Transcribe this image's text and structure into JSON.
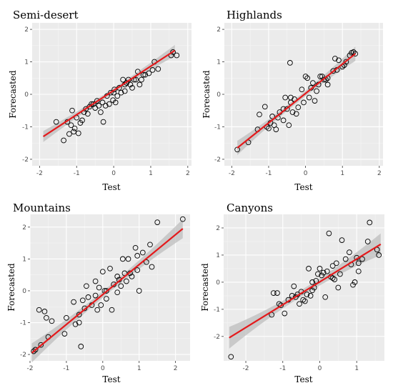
{
  "chart_data": [
    {
      "type": "scatter",
      "title": "Semi-desert",
      "xlabel": "Test",
      "ylabel": "Forecasted",
      "xlim": [
        -2.2,
        2.1
      ],
      "ylim": [
        -2.2,
        2.2
      ],
      "xticks": [
        -2,
        -1,
        0,
        1,
        2
      ],
      "yticks": [
        -2,
        -1,
        0,
        1,
        2
      ],
      "grid": true,
      "point_color": "#000000",
      "line_color": "#e41a1c",
      "band_color": "#bdbdbd",
      "background": "#ebebeb",
      "fit": {
        "x": [
          -1.9,
          1.65
        ],
        "y": [
          -1.3,
          1.35
        ]
      },
      "band_halfwidth": {
        "ends": 0.17,
        "center": 0.07
      },
      "points": [
        [
          -1.55,
          -0.85
        ],
        [
          -1.35,
          -1.42
        ],
        [
          -1.25,
          -0.85
        ],
        [
          -1.2,
          -1.22
        ],
        [
          -1.15,
          -0.95
        ],
        [
          -1.12,
          -0.5
        ],
        [
          -1.08,
          -1.15
        ],
        [
          -1.05,
          -1.05
        ],
        [
          -1.0,
          -0.72
        ],
        [
          -0.9,
          -0.88
        ],
        [
          -0.85,
          -0.8
        ],
        [
          -0.8,
          -0.55
        ],
        [
          -0.75,
          -0.45
        ],
        [
          -0.7,
          -0.6
        ],
        [
          -0.65,
          -0.38
        ],
        [
          -0.55,
          -0.3
        ],
        [
          -0.5,
          -0.42
        ],
        [
          -0.45,
          -0.2
        ],
        [
          -0.4,
          -0.35
        ],
        [
          -0.35,
          -0.55
        ],
        [
          -0.3,
          -0.25
        ],
        [
          -0.28,
          -0.85
        ],
        [
          -0.22,
          -0.35
        ],
        [
          -0.18,
          -0.05
        ],
        [
          -0.12,
          -0.3
        ],
        [
          -0.08,
          0.05
        ],
        [
          -0.02,
          -0.18
        ],
        [
          0.02,
          0.15
        ],
        [
          0.05,
          -0.25
        ],
        [
          0.1,
          -0.05
        ],
        [
          0.15,
          0.2
        ],
        [
          0.2,
          0.05
        ],
        [
          0.25,
          0.45
        ],
        [
          0.3,
          0.1
        ],
        [
          0.35,
          0.35
        ],
        [
          0.4,
          0.45
        ],
        [
          0.45,
          0.3
        ],
        [
          0.5,
          0.2
        ],
        [
          0.55,
          0.45
        ],
        [
          0.6,
          0.45
        ],
        [
          0.65,
          0.7
        ],
        [
          0.7,
          0.3
        ],
        [
          0.75,
          0.45
        ],
        [
          0.8,
          0.6
        ],
        [
          0.85,
          0.6
        ],
        [
          0.95,
          0.65
        ],
        [
          1.05,
          0.75
        ],
        [
          1.1,
          1.0
        ],
        [
          1.2,
          0.78
        ],
        [
          1.55,
          1.2
        ],
        [
          1.6,
          1.3
        ],
        [
          1.7,
          1.2
        ],
        [
          0.0,
          0.05
        ],
        [
          -0.6,
          -0.3
        ],
        [
          0.3,
          0.3
        ],
        [
          -0.95,
          -1.2
        ]
      ]
    },
    {
      "type": "scatter",
      "title": "Highlands",
      "xlabel": "Test",
      "ylabel": "Forecasted",
      "xlim": [
        -2.2,
        2.1
      ],
      "ylim": [
        -2.2,
        2.2
      ],
      "xticks": [
        -2,
        -1,
        0,
        1,
        2
      ],
      "yticks": [
        -2,
        -1,
        0,
        1,
        2
      ],
      "grid": true,
      "point_color": "#000000",
      "line_color": "#e41a1c",
      "band_color": "#bdbdbd",
      "background": "#ebebeb",
      "fit": {
        "x": [
          -1.85,
          1.35
        ],
        "y": [
          -1.65,
          1.25
        ]
      },
      "band_halfwidth": {
        "ends": 0.22,
        "center": 0.08
      },
      "points": [
        [
          -1.85,
          -1.7
        ],
        [
          -1.55,
          -1.48
        ],
        [
          -1.3,
          -1.08
        ],
        [
          -1.25,
          -0.62
        ],
        [
          -1.1,
          -0.38
        ],
        [
          -1.05,
          -1.0
        ],
        [
          -1.0,
          -1.05
        ],
        [
          -0.95,
          -0.88
        ],
        [
          -0.9,
          -0.68
        ],
        [
          -0.85,
          -0.95
        ],
        [
          -0.8,
          -1.08
        ],
        [
          -0.75,
          -0.72
        ],
        [
          -0.7,
          -0.55
        ],
        [
          -0.6,
          -0.45
        ],
        [
          -0.55,
          -0.1
        ],
        [
          -0.5,
          -0.45
        ],
        [
          -0.45,
          -0.95
        ],
        [
          -0.42,
          0.97
        ],
        [
          -0.4,
          -0.25
        ],
        [
          -0.35,
          -0.55
        ],
        [
          -0.3,
          -0.15
        ],
        [
          -0.25,
          -0.6
        ],
        [
          -0.2,
          -0.4
        ],
        [
          -0.1,
          0.15
        ],
        [
          -0.05,
          -0.25
        ],
        [
          0.0,
          0.55
        ],
        [
          0.05,
          0.5
        ],
        [
          0.1,
          -0.1
        ],
        [
          0.15,
          0.2
        ],
        [
          0.2,
          0.35
        ],
        [
          0.25,
          -0.2
        ],
        [
          0.3,
          0.1
        ],
        [
          0.35,
          0.3
        ],
        [
          0.4,
          0.55
        ],
        [
          0.45,
          0.55
        ],
        [
          0.5,
          0.45
        ],
        [
          0.55,
          0.45
        ],
        [
          0.6,
          0.5
        ],
        [
          0.75,
          0.72
        ],
        [
          0.8,
          1.1
        ],
        [
          0.85,
          0.75
        ],
        [
          0.9,
          1.05
        ],
        [
          1.0,
          0.85
        ],
        [
          1.05,
          0.9
        ],
        [
          1.1,
          1.0
        ],
        [
          1.2,
          1.2
        ],
        [
          1.25,
          1.28
        ],
        [
          1.3,
          1.3
        ],
        [
          1.35,
          1.25
        ],
        [
          -0.4,
          -0.1
        ],
        [
          0.6,
          0.3
        ],
        [
          -0.6,
          -0.8
        ]
      ]
    },
    {
      "type": "scatter",
      "title": "Mountains",
      "xlabel": "Test",
      "ylabel": "Forecasted",
      "xlim": [
        -2.0,
        2.4
      ],
      "ylim": [
        -2.2,
        2.4
      ],
      "xticks": [
        -2,
        -1,
        0,
        1,
        2
      ],
      "yticks": [
        -2,
        -1,
        0,
        1,
        2
      ],
      "grid": true,
      "point_color": "#000000",
      "line_color": "#e41a1c",
      "band_color": "#bdbdbd",
      "background": "#ebebeb",
      "fit": {
        "x": [
          -1.95,
          2.2
        ],
        "y": [
          -1.95,
          1.95
        ]
      },
      "band_halfwidth": {
        "ends": 0.3,
        "center": 0.1
      },
      "points": [
        [
          -1.9,
          -1.9
        ],
        [
          -1.85,
          -1.85
        ],
        [
          -1.75,
          -0.6
        ],
        [
          -1.7,
          -1.7
        ],
        [
          -1.6,
          -0.65
        ],
        [
          -1.55,
          -0.85
        ],
        [
          -1.5,
          -1.45
        ],
        [
          -1.4,
          -0.95
        ],
        [
          -1.05,
          -1.35
        ],
        [
          -1.0,
          -0.85
        ],
        [
          -0.8,
          -0.35
        ],
        [
          -0.75,
          -1.05
        ],
        [
          -0.65,
          -0.75
        ],
        [
          -0.6,
          -1.75
        ],
        [
          -0.55,
          -0.3
        ],
        [
          -0.5,
          -0.55
        ],
        [
          -0.45,
          0.15
        ],
        [
          -0.4,
          -0.2
        ],
        [
          -0.3,
          -0.45
        ],
        [
          -0.2,
          -0.15
        ],
        [
          -0.15,
          -0.6
        ],
        [
          -0.1,
          0.1
        ],
        [
          0.0,
          0.6
        ],
        [
          0.05,
          0.0
        ],
        [
          0.1,
          -0.25
        ],
        [
          0.2,
          0.7
        ],
        [
          0.25,
          -0.6
        ],
        [
          0.3,
          0.2
        ],
        [
          0.4,
          -0.05
        ],
        [
          0.45,
          0.35
        ],
        [
          0.5,
          0.15
        ],
        [
          0.55,
          1.0
        ],
        [
          0.6,
          0.55
        ],
        [
          0.7,
          1.0
        ],
        [
          0.8,
          0.45
        ],
        [
          0.9,
          1.35
        ],
        [
          0.95,
          1.1
        ],
        [
          1.0,
          0.0
        ],
        [
          1.1,
          1.2
        ],
        [
          1.2,
          0.9
        ],
        [
          1.3,
          1.45
        ],
        [
          1.35,
          0.75
        ],
        [
          1.5,
          2.15
        ],
        [
          2.2,
          2.25
        ],
        [
          0.65,
          0.3
        ],
        [
          -0.2,
          0.3
        ],
        [
          0.1,
          0.0
        ],
        [
          -0.05,
          -0.45
        ],
        [
          -0.65,
          -1.0
        ],
        [
          0.95,
          0.65
        ],
        [
          0.4,
          0.45
        ],
        [
          0.75,
          0.55
        ]
      ]
    },
    {
      "type": "scatter",
      "title": "Canyons",
      "xlabel": "Test",
      "ylabel": "Forecasted",
      "xlim": [
        -2.6,
        1.75
      ],
      "ylim": [
        -2.9,
        2.5
      ],
      "xticks": [
        -2,
        -1,
        0,
        1
      ],
      "yticks": [
        -2,
        -1,
        0,
        1,
        2
      ],
      "grid": true,
      "point_color": "#000000",
      "line_color": "#e41a1c",
      "band_color": "#bdbdbd",
      "background": "#ebebeb",
      "fit": {
        "x": [
          -2.45,
          1.65
        ],
        "y": [
          -2.05,
          1.4
        ]
      },
      "band_halfwidth": {
        "ends": 0.4,
        "center": 0.12
      },
      "points": [
        [
          -2.4,
          -2.75
        ],
        [
          -1.3,
          -1.2
        ],
        [
          -1.25,
          -0.4
        ],
        [
          -1.15,
          -0.4
        ],
        [
          -1.1,
          -0.8
        ],
        [
          -1.05,
          -0.85
        ],
        [
          -0.95,
          -1.15
        ],
        [
          -0.85,
          -0.65
        ],
        [
          -0.75,
          -0.5
        ],
        [
          -0.7,
          -0.15
        ],
        [
          -0.65,
          -0.55
        ],
        [
          -0.6,
          -0.45
        ],
        [
          -0.55,
          -0.8
        ],
        [
          -0.5,
          -0.35
        ],
        [
          -0.45,
          -0.65
        ],
        [
          -0.4,
          -0.7
        ],
        [
          -0.35,
          -0.45
        ],
        [
          -0.3,
          0.5
        ],
        [
          -0.25,
          -0.5
        ],
        [
          -0.2,
          0.0
        ],
        [
          -0.15,
          -0.2
        ],
        [
          -0.1,
          0.05
        ],
        [
          -0.05,
          0.3
        ],
        [
          0.0,
          0.5
        ],
        [
          0.05,
          0.25
        ],
        [
          0.1,
          0.35
        ],
        [
          0.15,
          -0.55
        ],
        [
          0.25,
          1.8
        ],
        [
          0.3,
          0.2
        ],
        [
          0.35,
          0.6
        ],
        [
          0.4,
          0.1
        ],
        [
          0.45,
          0.7
        ],
        [
          0.5,
          -0.2
        ],
        [
          0.6,
          1.55
        ],
        [
          0.7,
          0.85
        ],
        [
          0.8,
          1.1
        ],
        [
          0.85,
          0.65
        ],
        [
          0.9,
          -0.1
        ],
        [
          0.95,
          0.0
        ],
        [
          1.0,
          0.9
        ],
        [
          1.05,
          0.7
        ],
        [
          1.15,
          0.85
        ],
        [
          1.3,
          1.5
        ],
        [
          1.35,
          2.2
        ],
        [
          1.55,
          1.2
        ],
        [
          1.6,
          1.0
        ],
        [
          0.2,
          0.4
        ],
        [
          -0.2,
          -0.3
        ],
        [
          0.55,
          0.3
        ],
        [
          1.05,
          0.4
        ],
        [
          0.35,
          0.15
        ]
      ]
    }
  ]
}
